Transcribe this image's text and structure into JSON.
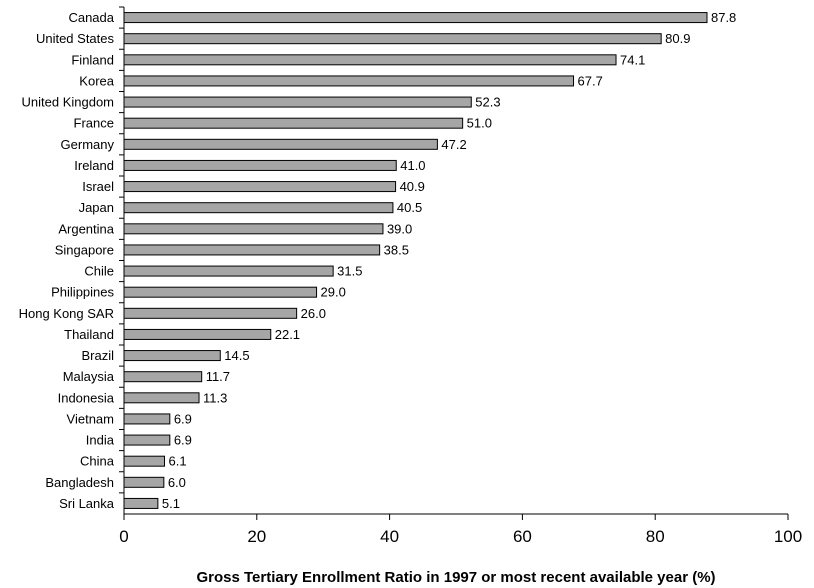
{
  "chart_data": {
    "type": "bar",
    "orientation": "horizontal",
    "categories": [
      "Canada",
      "United States",
      "Finland",
      "Korea",
      "United Kingdom",
      "France",
      "Germany",
      "Ireland",
      "Israel",
      "Japan",
      "Argentina",
      "Singapore",
      "Chile",
      "Philippines",
      "Hong Kong SAR",
      "Thailand",
      "Brazil",
      "Malaysia",
      "Indonesia",
      "Vietnam",
      "India",
      "China",
      "Bangladesh",
      "Sri Lanka"
    ],
    "values": [
      87.8,
      80.9,
      74.1,
      67.7,
      52.3,
      51.0,
      47.2,
      41.0,
      40.9,
      40.5,
      39.0,
      38.5,
      31.5,
      29.0,
      26.0,
      22.1,
      14.5,
      11.7,
      11.3,
      6.9,
      6.9,
      6.1,
      6.0,
      5.1
    ],
    "value_labels": [
      "87.8",
      "80.9",
      "74.1",
      "67.7",
      "52.3",
      "51.0",
      "47.2",
      "41.0",
      "40.9",
      "40.5",
      "39.0",
      "38.5",
      "31.5",
      "29.0",
      "26.0",
      "22.1",
      "14.5",
      "11.7",
      "11.3",
      "6.9",
      "6.9",
      "6.1",
      "6.0",
      "5.1"
    ],
    "xticks": [
      "0",
      "20",
      "40",
      "60",
      "80",
      "100"
    ],
    "xlim": [
      0,
      100
    ],
    "xlabel": "Gross Tertiary Enrollment Ratio in 1997 or most recent available year (%)",
    "ylabel": "",
    "title": "",
    "grid": false,
    "colors": {
      "bar_fill": "#a6a6a6",
      "bar_stroke": "#000000"
    }
  }
}
